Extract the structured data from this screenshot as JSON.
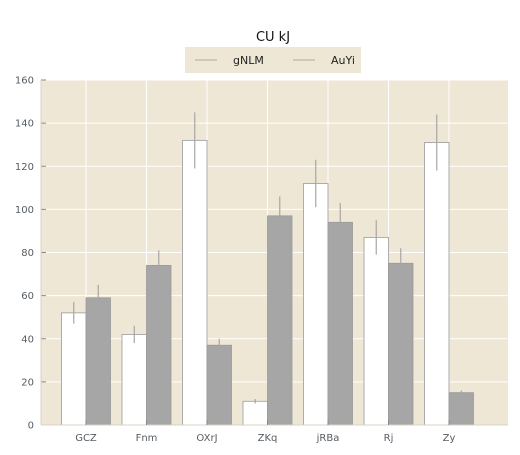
{
  "chart_data": {
    "type": "bar",
    "title": "CU kJ",
    "xlabel": "",
    "ylabel": "",
    "categories": [
      "GCZ",
      "Fnm",
      "OXrJ",
      "ZKq",
      "jRBa",
      "Rj",
      "Zy"
    ],
    "series": [
      {
        "name": "gNLM",
        "values": [
          52,
          42,
          132,
          11,
          112,
          87,
          131
        ],
        "errors": [
          5,
          4,
          13,
          1,
          11,
          8,
          13
        ],
        "color": "#ffffff"
      },
      {
        "name": "AuYi",
        "values": [
          59,
          74,
          37,
          97,
          94,
          75,
          15
        ],
        "errors": [
          6,
          7,
          3,
          9,
          9,
          7,
          1
        ],
        "color": "#a6a6a6"
      }
    ],
    "ylim": [
      0,
      160
    ],
    "yticks": [
      "0",
      "20",
      "40",
      "60",
      "80",
      "100",
      "120",
      "140",
      "160"
    ],
    "grid": true,
    "legend_position": "top-center",
    "colors": {
      "plot_background": "#efe7d5",
      "grid": "#ffffff",
      "error_bar": "#a6a6a6",
      "bar_edge": "#9a9a9a"
    }
  }
}
